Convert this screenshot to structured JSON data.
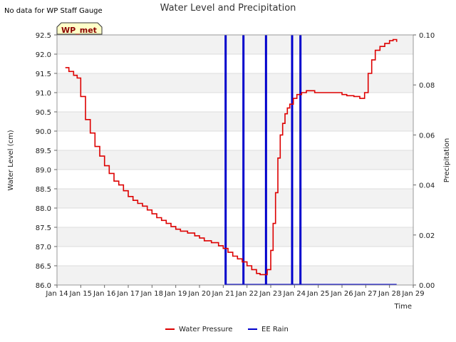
{
  "note": "No data for WP Staff Gauge",
  "badge": "WP_met",
  "chart_data": {
    "type": "line",
    "title": "Water Level and Precipitation",
    "xlabel": "Time",
    "ylabel": "Water Level (cm)",
    "y2label": "Precipitation",
    "xlim": [
      14,
      29
    ],
    "ylim": [
      86.0,
      92.5
    ],
    "y2lim": [
      0.0,
      0.1
    ],
    "x_ticks": [
      "Jan 14",
      "Jan 15",
      "Jan 16",
      "Jan 17",
      "Jan 18",
      "Jan 19",
      "Jan 20",
      "Jan 21",
      "Jan 22",
      "Jan 23",
      "Jan 24",
      "Jan 25",
      "Jan 26",
      "Jan 27",
      "Jan 28",
      "Jan 29"
    ],
    "x_tick_values": [
      14,
      15,
      16,
      17,
      18,
      19,
      20,
      21,
      22,
      23,
      24,
      25,
      26,
      27,
      28,
      29
    ],
    "y_ticks": [
      "86.0",
      "86.5",
      "87.0",
      "87.5",
      "88.0",
      "88.5",
      "89.0",
      "89.5",
      "90.0",
      "90.5",
      "91.0",
      "91.5",
      "92.0",
      "92.5"
    ],
    "y_tick_values": [
      86.0,
      86.5,
      87.0,
      87.5,
      88.0,
      88.5,
      89.0,
      89.5,
      90.0,
      90.5,
      91.0,
      91.5,
      92.0,
      92.5
    ],
    "y2_ticks": [
      "0.00",
      "0.02",
      "0.04",
      "0.06",
      "0.08",
      "0.10"
    ],
    "y2_tick_values": [
      0.0,
      0.02,
      0.04,
      0.06,
      0.08,
      0.1
    ],
    "legend_position": "bottom-center",
    "series": [
      {
        "name": "Water Pressure",
        "color": "#dd0000",
        "axis": "left",
        "x": [
          14.35,
          14.5,
          14.7,
          14.85,
          15.0,
          15.2,
          15.4,
          15.6,
          15.8,
          16.0,
          16.2,
          16.4,
          16.6,
          16.8,
          17.0,
          17.2,
          17.4,
          17.6,
          17.8,
          18.0,
          18.2,
          18.4,
          18.6,
          18.8,
          19.0,
          19.2,
          19.5,
          19.8,
          20.0,
          20.2,
          20.5,
          20.8,
          21.0,
          21.2,
          21.4,
          21.6,
          21.8,
          22.0,
          22.2,
          22.4,
          22.55,
          22.7,
          22.85,
          23.0,
          23.1,
          23.2,
          23.3,
          23.4,
          23.5,
          23.6,
          23.7,
          23.8,
          23.95,
          24.1,
          24.3,
          24.5,
          24.7,
          24.85,
          25.0,
          25.15,
          25.4,
          25.7,
          26.0,
          26.2,
          26.5,
          26.75,
          26.85,
          26.95,
          27.1,
          27.25,
          27.4,
          27.6,
          27.8,
          28.0,
          28.15,
          28.3
        ],
        "y": [
          91.65,
          91.55,
          91.45,
          91.38,
          90.9,
          90.3,
          89.95,
          89.6,
          89.35,
          89.1,
          88.9,
          88.7,
          88.6,
          88.45,
          88.3,
          88.2,
          88.12,
          88.05,
          87.95,
          87.85,
          87.75,
          87.68,
          87.6,
          87.52,
          87.45,
          87.4,
          87.35,
          87.28,
          87.22,
          87.15,
          87.1,
          87.02,
          86.95,
          86.85,
          86.75,
          86.68,
          86.6,
          86.5,
          86.4,
          86.3,
          86.27,
          86.27,
          86.4,
          86.9,
          87.6,
          88.4,
          89.3,
          89.9,
          90.2,
          90.45,
          90.6,
          90.7,
          90.85,
          90.95,
          91.0,
          91.05,
          91.05,
          91.0,
          91.0,
          91.0,
          91.0,
          91.0,
          90.95,
          90.92,
          90.9,
          90.85,
          90.85,
          91.0,
          91.5,
          91.85,
          92.1,
          92.2,
          92.28,
          92.35,
          92.38,
          92.32
        ]
      },
      {
        "name": "EE Rain",
        "color": "#0000cc",
        "axis": "right",
        "x": [
          21.1,
          21.85,
          22.8,
          23.9,
          24.25
        ],
        "y": [
          0.1,
          0.1,
          0.1,
          0.1,
          0.1
        ],
        "baseline_x": [
          21.1,
          28.3
        ]
      }
    ]
  }
}
